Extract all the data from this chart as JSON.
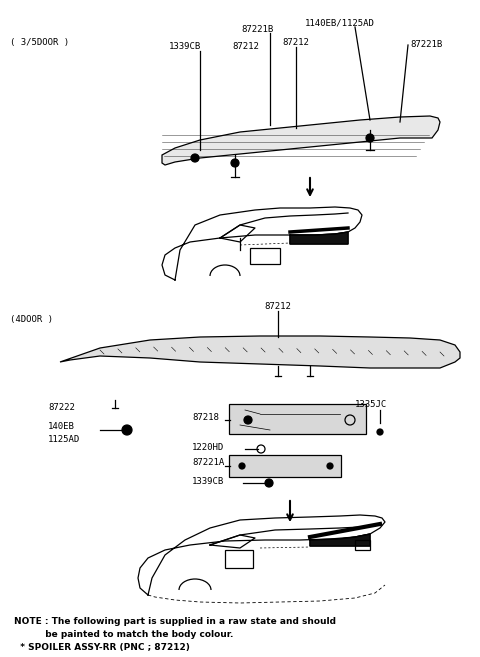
{
  "bg_color": "#ffffff",
  "fig_width": 4.8,
  "fig_height": 6.57,
  "dpi": 100,
  "note_line1": "NOTE : The following part is supplied in a raw state and should",
  "note_line2": "          be painted to match the body colour.",
  "note_line3": "  * SPOILER ASSY-RR (PNC ; 87212)",
  "section1_label": "( 3/5DOOR )",
  "section2_label": "(4DOOR )"
}
